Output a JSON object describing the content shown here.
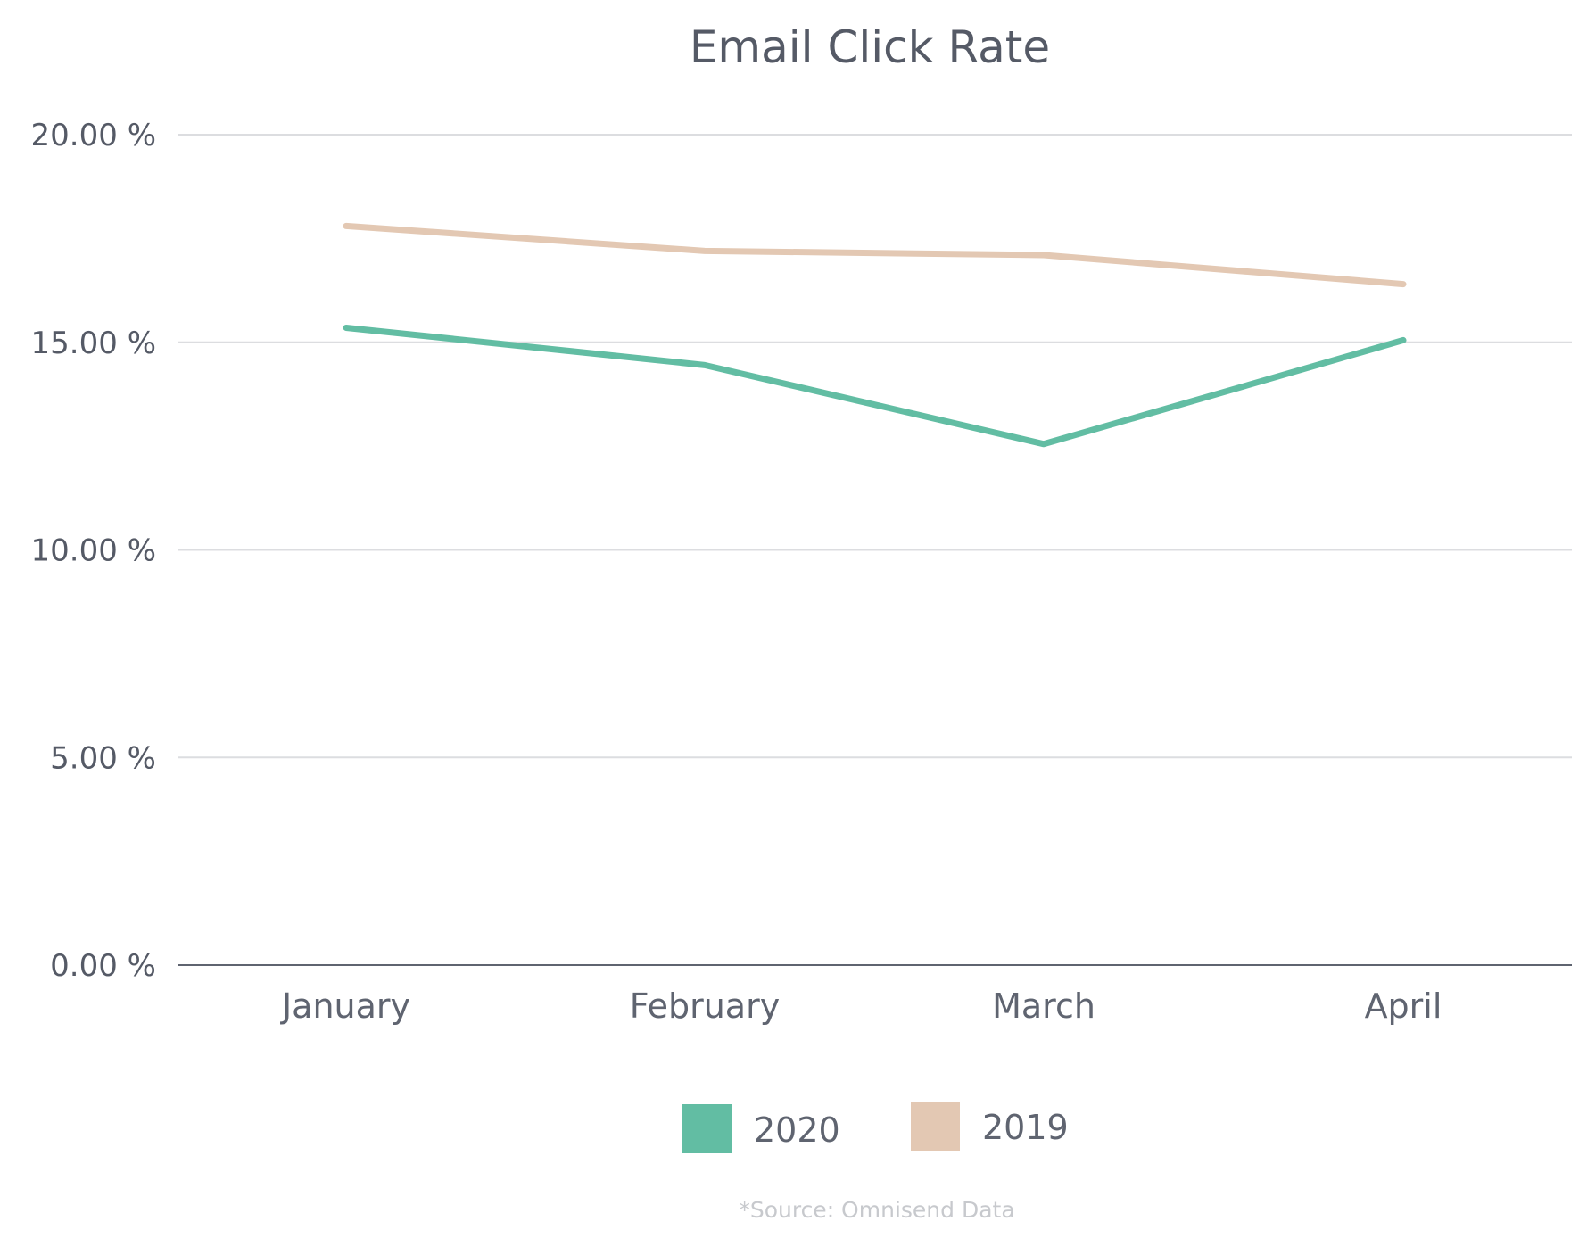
{
  "chart_data": {
    "type": "line",
    "title": "Email Click Rate",
    "xlabel": "",
    "ylabel": "",
    "categories": [
      "January",
      "February",
      "March",
      "April"
    ],
    "yticks": [
      {
        "value": 0,
        "label": "0.00 %"
      },
      {
        "value": 5,
        "label": "5.00 %"
      },
      {
        "value": 10,
        "label": "10.00 %"
      },
      {
        "value": 15,
        "label": "15.00 %"
      },
      {
        "value": 20,
        "label": "20.00 %"
      }
    ],
    "ylim": [
      0,
      20
    ],
    "grid": true,
    "legend_position": "bottom-center",
    "series": [
      {
        "name": "2020",
        "color": "#62bda3",
        "values": [
          15.35,
          14.45,
          12.55,
          15.05
        ]
      },
      {
        "name": "2019",
        "color": "#e3c8b3",
        "values": [
          17.8,
          17.2,
          17.1,
          16.4
        ]
      }
    ],
    "source_note": "*Source: Omnisend Data"
  }
}
